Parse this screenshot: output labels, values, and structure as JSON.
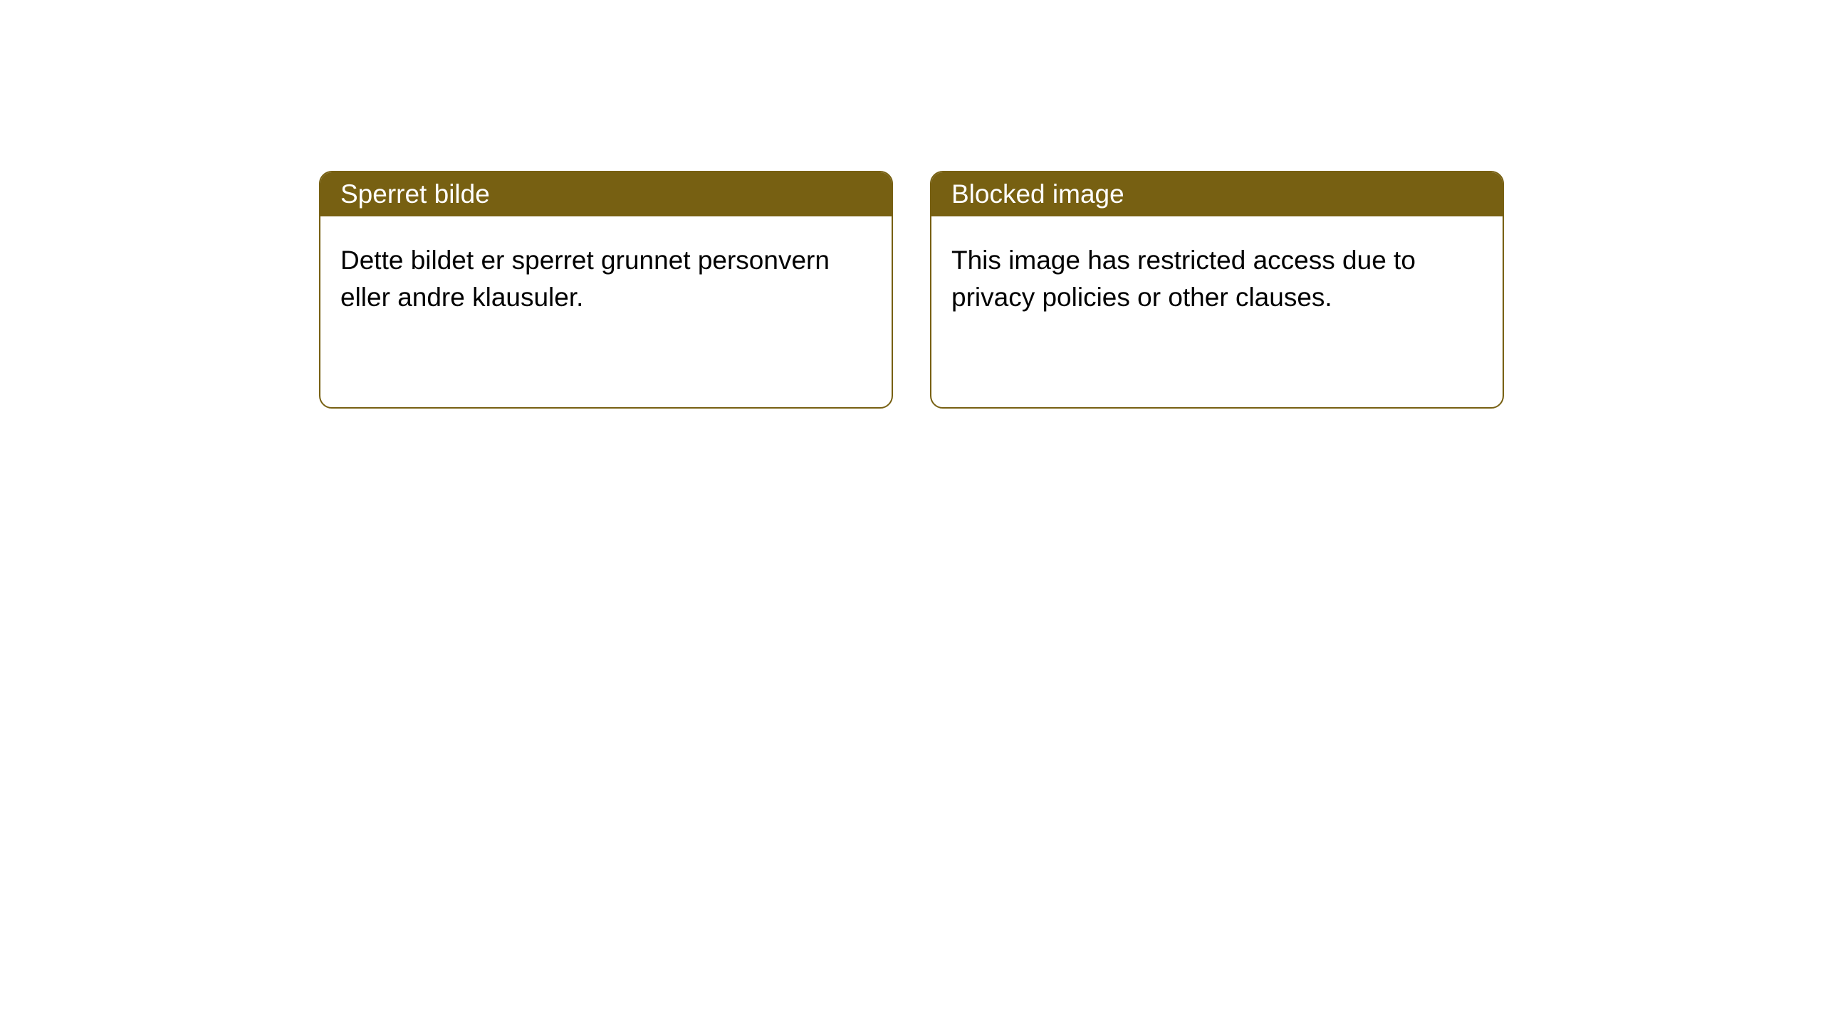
{
  "cards": [
    {
      "title": "Sperret bilde",
      "body": "Dette bildet er sperret grunnet personvern eller andre klausuler."
    },
    {
      "title": "Blocked image",
      "body": "This image has restricted access due to privacy policies or other clauses."
    }
  ],
  "style": {
    "header_background": "#776012",
    "header_text_color": "#ffffff",
    "card_border_color": "#776012",
    "card_background": "#ffffff",
    "body_text_color": "#000000",
    "page_background": "#ffffff",
    "border_radius": 18,
    "title_fontsize": 37,
    "body_fontsize": 37
  }
}
